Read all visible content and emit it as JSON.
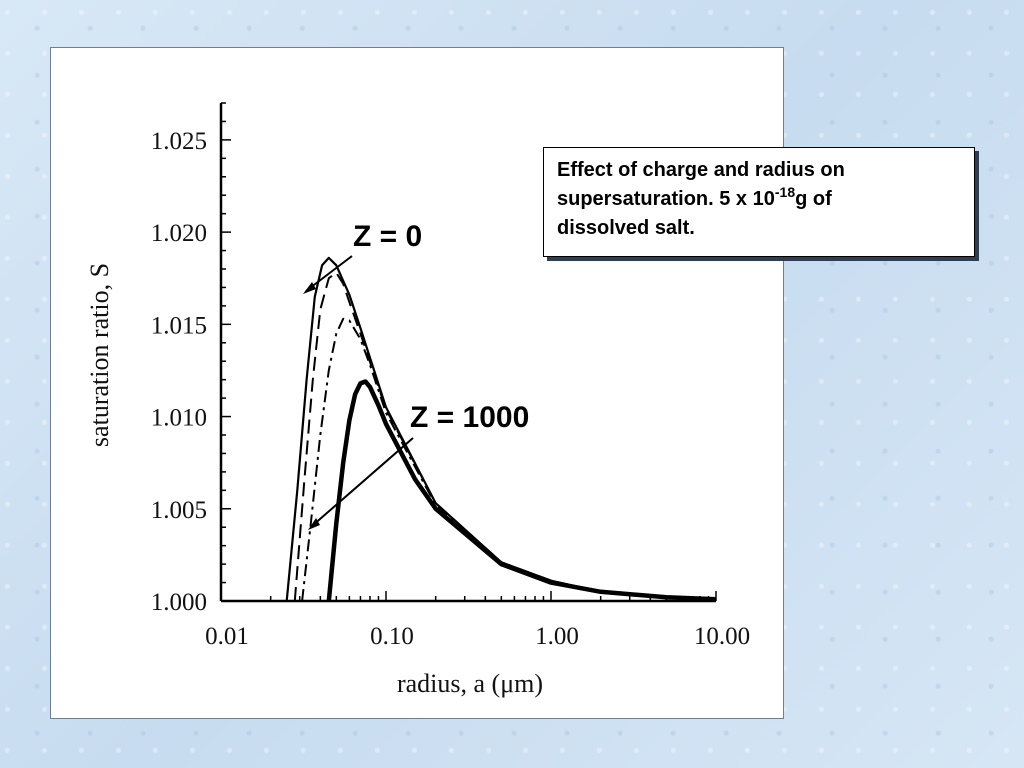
{
  "caption": {
    "line1": "Effect of charge and radius on",
    "line2_prefix": "supersaturation. 5 x 10",
    "line2_exponent": "-18",
    "line2_suffix": "g of",
    "line3": "dissolved salt."
  },
  "annotations": {
    "z0": "Z = 0",
    "z1000": "Z = 1000"
  },
  "chart_data": {
    "type": "line",
    "xlabel": "radius, a (μm)",
    "ylabel": "saturation ratio, S",
    "xscale": "log",
    "xlim": [
      0.01,
      10.0
    ],
    "ylim": [
      1.0,
      1.027
    ],
    "grid": false,
    "xticks": [
      "0.01",
      "0.10",
      "1.00",
      "10.00"
    ],
    "xtick_values": [
      0.01,
      0.1,
      1.0,
      10.0
    ],
    "yticks": [
      "1.000",
      "1.005",
      "1.010",
      "1.015",
      "1.020",
      "1.025"
    ],
    "ytick_values": [
      1.0,
      1.005,
      1.01,
      1.015,
      1.02,
      1.025
    ],
    "series": [
      {
        "style": "solid-thin",
        "x": [
          0.025,
          0.029,
          0.033,
          0.037,
          0.041,
          0.045,
          0.05,
          0.06,
          0.07,
          0.1,
          0.2,
          0.5,
          1.0,
          2.0,
          5.0,
          10.0
        ],
        "y": [
          1.0,
          1.006,
          1.012,
          1.0165,
          1.0182,
          1.0186,
          1.0182,
          1.0166,
          1.0148,
          1.0105,
          1.0053,
          1.0021,
          1.0011,
          1.0005,
          1.0002,
          1.0001
        ]
      },
      {
        "style": "long-dash",
        "x": [
          0.028,
          0.032,
          0.036,
          0.04,
          0.045,
          0.05,
          0.055,
          0.06,
          0.07,
          0.1,
          0.2,
          0.5,
          1.0,
          2.0,
          5.0,
          10.0
        ],
        "y": [
          1.0,
          1.0065,
          1.012,
          1.0158,
          1.0175,
          1.0178,
          1.0172,
          1.0162,
          1.0145,
          1.0104,
          1.0053,
          1.0021,
          1.0011,
          1.0005,
          1.0002,
          1.0001
        ]
      },
      {
        "style": "dash-dot",
        "x": [
          0.031,
          0.035,
          0.04,
          0.045,
          0.05,
          0.055,
          0.06,
          0.07,
          0.08,
          0.1,
          0.2,
          0.5,
          1.0,
          2.0,
          5.0,
          10.0
        ],
        "y": [
          1.0,
          1.0042,
          1.009,
          1.0125,
          1.0145,
          1.0153,
          1.0152,
          1.0142,
          1.0128,
          1.0102,
          1.0052,
          1.0021,
          1.0011,
          1.0005,
          1.0002,
          1.0001
        ]
      },
      {
        "style": "solid-thick",
        "x": [
          0.045,
          0.05,
          0.055,
          0.06,
          0.065,
          0.07,
          0.075,
          0.08,
          0.09,
          0.1,
          0.15,
          0.2,
          0.5,
          1.0,
          2.0,
          5.0,
          10.0
        ],
        "y": [
          1.0,
          1.0042,
          1.0075,
          1.0098,
          1.0112,
          1.0118,
          1.0119,
          1.0116,
          1.0106,
          1.0096,
          1.0066,
          1.005,
          1.002,
          1.001,
          1.0005,
          1.0002,
          1.0001
        ]
      }
    ]
  }
}
